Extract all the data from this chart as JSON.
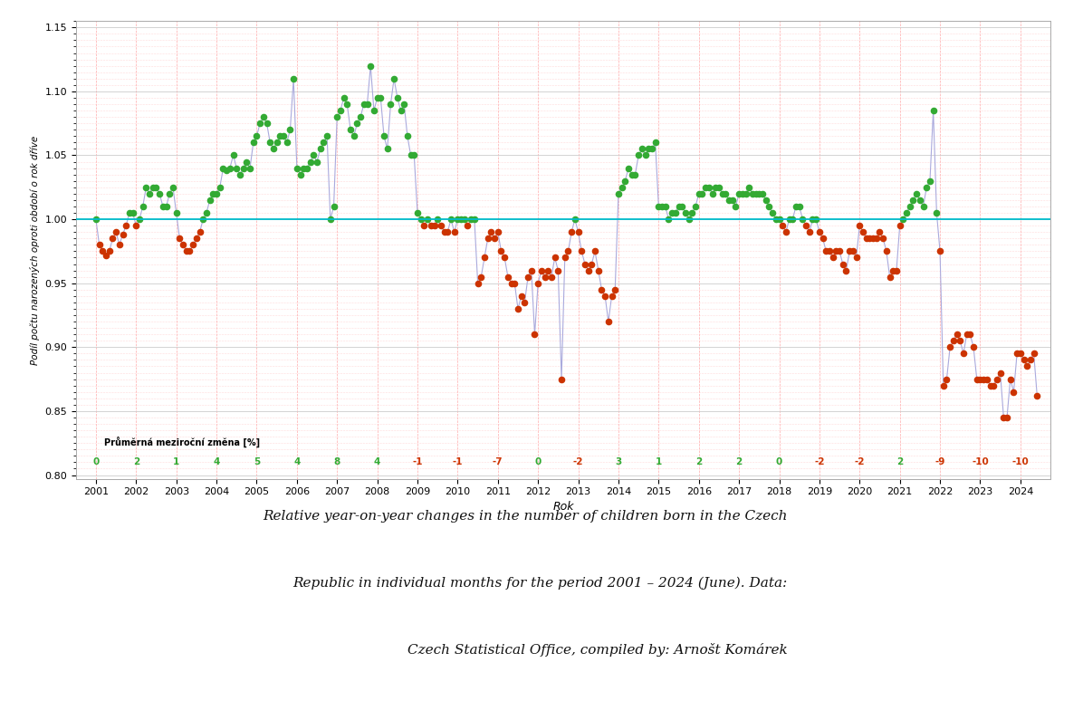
{
  "xlabel": "Rok",
  "ylabel": "Podíl počtu narozených oproti období o rok dříve",
  "caption_line1": "Relative year-on-year changes in the number of children born in the Czech",
  "caption_line2": "Republic in individual months for the period 2001 – 2024 (June). Data:",
  "caption_line3": "Czech Statistical Office, compiled by: Arnošt Komárek",
  "legend_label": "Průměrná meziroční změna [%]",
  "ylim": [
    0.797,
    1.155
  ],
  "yticks": [
    0.8,
    0.85,
    0.9,
    0.95,
    1.0,
    1.05,
    1.1,
    1.15
  ],
  "hline_y": 1.0,
  "hline_color": "#00BBCC",
  "line_color": "#AAAADD",
  "dot_color_above": "#33AA33",
  "dot_color_below": "#CC3300",
  "background_color": "#FFFFFF",
  "years": [
    2001,
    2002,
    2003,
    2004,
    2005,
    2006,
    2007,
    2008,
    2009,
    2010,
    2011,
    2012,
    2013,
    2014,
    2015,
    2016,
    2017,
    2018,
    2019,
    2020,
    2021,
    2022,
    2023,
    2024
  ],
  "annual_changes": [
    "0",
    "2",
    "1",
    "4",
    "5",
    "4",
    "8",
    "4",
    "-1",
    "-1",
    "-7",
    "0",
    "-2",
    "3",
    "1",
    "2",
    "2",
    "0",
    "-2",
    "-2",
    "2",
    "-9",
    "-10",
    "-10"
  ],
  "annual_changes_colors": [
    "#33AA33",
    "#33AA33",
    "#33AA33",
    "#33AA33",
    "#33AA33",
    "#33AA33",
    "#33AA33",
    "#33AA33",
    "#CC3300",
    "#CC3300",
    "#CC3300",
    "#33AA33",
    "#CC3300",
    "#33AA33",
    "#33AA33",
    "#33AA33",
    "#33AA33",
    "#33AA33",
    "#CC3300",
    "#CC3300",
    "#33AA33",
    "#CC3300",
    "#CC3300",
    "#CC3300"
  ],
  "monthly_data": {
    "2001": [
      1.0,
      0.98,
      0.975,
      0.972,
      0.975,
      0.985,
      0.99,
      0.98,
      0.988,
      0.995,
      1.005,
      1.005
    ],
    "2002": [
      0.995,
      1.0,
      1.01,
      1.025,
      1.02,
      1.025,
      1.025,
      1.02,
      1.01,
      1.01,
      1.02,
      1.025
    ],
    "2003": [
      1.005,
      0.985,
      0.98,
      0.975,
      0.975,
      0.98,
      0.985,
      0.99,
      1.0,
      1.005,
      1.015,
      1.02
    ],
    "2004": [
      1.02,
      1.025,
      1.04,
      1.038,
      1.04,
      1.05,
      1.04,
      1.035,
      1.04,
      1.045,
      1.04,
      1.06
    ],
    "2005": [
      1.065,
      1.075,
      1.08,
      1.075,
      1.06,
      1.055,
      1.06,
      1.065,
      1.065,
      1.06,
      1.07,
      1.11
    ],
    "2006": [
      1.04,
      1.035,
      1.04,
      1.04,
      1.045,
      1.05,
      1.045,
      1.055,
      1.06,
      1.065,
      1.0,
      1.01
    ],
    "2007": [
      1.08,
      1.085,
      1.095,
      1.09,
      1.07,
      1.065,
      1.075,
      1.08,
      1.09,
      1.09,
      1.12,
      1.085
    ],
    "2008": [
      1.095,
      1.095,
      1.065,
      1.055,
      1.09,
      1.11,
      1.095,
      1.085,
      1.09,
      1.065,
      1.05,
      1.05
    ],
    "2009": [
      1.005,
      1.0,
      0.995,
      1.0,
      0.995,
      0.995,
      1.0,
      0.995,
      0.99,
      0.99,
      1.0,
      0.99
    ],
    "2010": [
      1.0,
      1.0,
      1.0,
      0.995,
      1.0,
      1.0,
      0.95,
      0.955,
      0.97,
      0.985,
      0.99,
      0.985
    ],
    "2011": [
      0.99,
      0.975,
      0.97,
      0.955,
      0.95,
      0.95,
      0.93,
      0.94,
      0.935,
      0.955,
      0.96,
      0.91
    ],
    "2012": [
      0.95,
      0.96,
      0.955,
      0.96,
      0.955,
      0.97,
      0.96,
      0.875,
      0.97,
      0.975,
      0.99,
      1.0
    ],
    "2013": [
      0.99,
      0.975,
      0.965,
      0.96,
      0.965,
      0.975,
      0.96,
      0.945,
      0.94,
      0.92,
      0.94,
      0.945
    ],
    "2014": [
      1.02,
      1.025,
      1.03,
      1.04,
      1.035,
      1.035,
      1.05,
      1.055,
      1.05,
      1.055,
      1.055,
      1.06
    ],
    "2015": [
      1.01,
      1.01,
      1.01,
      1.0,
      1.005,
      1.005,
      1.01,
      1.01,
      1.005,
      1.0,
      1.005,
      1.01
    ],
    "2016": [
      1.02,
      1.02,
      1.025,
      1.025,
      1.02,
      1.025,
      1.025,
      1.02,
      1.02,
      1.015,
      1.015,
      1.01
    ],
    "2017": [
      1.02,
      1.02,
      1.02,
      1.025,
      1.02,
      1.02,
      1.02,
      1.02,
      1.015,
      1.01,
      1.005,
      1.0
    ],
    "2018": [
      1.0,
      0.995,
      0.99,
      1.0,
      1.0,
      1.01,
      1.01,
      1.0,
      0.995,
      0.99,
      1.0,
      1.0
    ],
    "2019": [
      0.99,
      0.985,
      0.975,
      0.975,
      0.97,
      0.975,
      0.975,
      0.965,
      0.96,
      0.975,
      0.975,
      0.97
    ],
    "2020": [
      0.995,
      0.99,
      0.985,
      0.985,
      0.985,
      0.985,
      0.99,
      0.985,
      0.975,
      0.955,
      0.96,
      0.96
    ],
    "2021": [
      0.995,
      1.0,
      1.005,
      1.01,
      1.015,
      1.02,
      1.015,
      1.01,
      1.025,
      1.03,
      1.085,
      1.005
    ],
    "2022": [
      0.975,
      0.87,
      0.875,
      0.9,
      0.905,
      0.91,
      0.905,
      0.895,
      0.91,
      0.91,
      0.9,
      0.875
    ],
    "2023": [
      0.875,
      0.875,
      0.875,
      0.87,
      0.87,
      0.875,
      0.88,
      0.845,
      0.845,
      0.875,
      0.865,
      0.895
    ],
    "2024": [
      0.895,
      0.89,
      0.885,
      0.89,
      0.895,
      0.862
    ]
  }
}
